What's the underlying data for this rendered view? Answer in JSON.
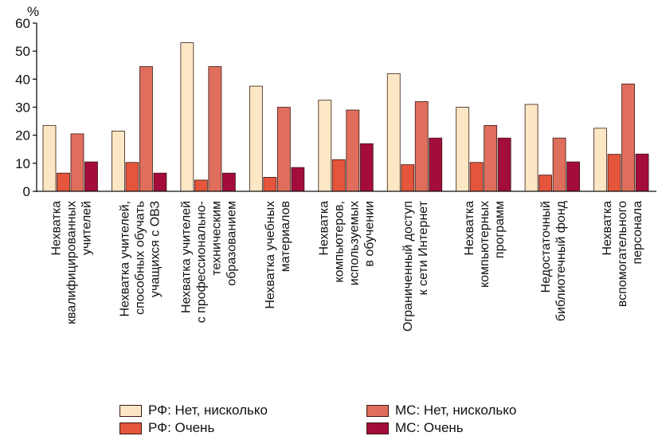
{
  "chart_data": {
    "type": "bar",
    "ylabel": "%",
    "ylim": [
      0,
      60
    ],
    "yticks": [
      "0",
      "10",
      "20",
      "30",
      "40",
      "50",
      "60"
    ],
    "categories": [
      [
        "Нехватка",
        "квалифицированных",
        "учителей"
      ],
      [
        "Нехватка учителей,",
        "способных обучать",
        "учащихся с ОВЗ"
      ],
      [
        "Нехватка учителей",
        "с профессионально-",
        "техническим",
        "образованием"
      ],
      [
        "Нехватка учебных",
        "материалов"
      ],
      [
        "Нехватка",
        "компьютеров,",
        "используемых",
        "в обучении"
      ],
      [
        "Ограниченный доступ",
        "к сети Интернет"
      ],
      [
        "Нехватка",
        "компьютерных",
        "программ"
      ],
      [
        "Недостаточный",
        "библиотечный фонд"
      ],
      [
        "Нехватка",
        "вспомогательного",
        "персонала"
      ]
    ],
    "series": [
      {
        "name": "РФ: Нет, нисколько",
        "color": "#fbe7c3",
        "values": [
          23.5,
          21.5,
          53,
          37.5,
          32.5,
          42,
          30,
          31,
          22.5
        ]
      },
      {
        "name": "РФ: Очень",
        "color": "#e4553b",
        "values": [
          6.5,
          10.3,
          4,
          5,
          11.3,
          9.5,
          10.3,
          5.8,
          13.2
        ]
      },
      {
        "name": "МС: Нет, нисколько",
        "color": "#e06e5d",
        "values": [
          20.5,
          44.5,
          44.5,
          30,
          29,
          32,
          23.5,
          19,
          38.3
        ]
      },
      {
        "name": "МС: Очень",
        "color": "#a30c3b",
        "values": [
          10.5,
          6.5,
          6.5,
          8.5,
          17,
          19,
          19,
          10.5,
          13.3
        ]
      }
    ]
  }
}
